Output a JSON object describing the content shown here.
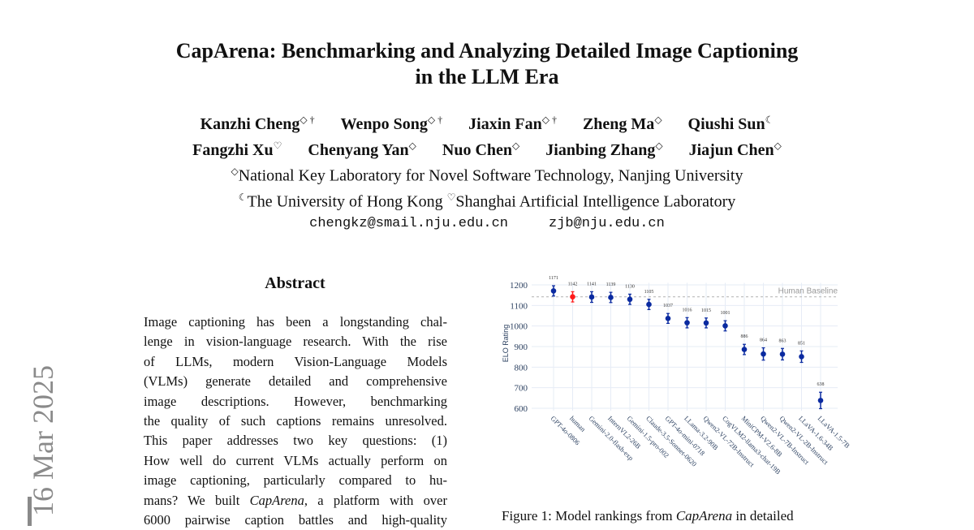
{
  "paper": {
    "title_lines": [
      "CapArena: Benchmarking and Analyzing Detailed Image Captioning",
      "in the LLM Era"
    ],
    "authors_line1": [
      {
        "name": "Kanzhi Cheng",
        "mark": "◇ †"
      },
      {
        "name": "Wenpo Song",
        "mark": "◇ †"
      },
      {
        "name": "Jiaxin Fan",
        "mark": "◇ †"
      },
      {
        "name": "Zheng Ma",
        "mark": "◇"
      },
      {
        "name": "Qiushi Sun",
        "mark": "☾"
      }
    ],
    "authors_line2": [
      {
        "name": "Fangzhi Xu",
        "mark": "♡"
      },
      {
        "name": "Chenyang Yan",
        "mark": "◇"
      },
      {
        "name": "Nuo Chen",
        "mark": "◇"
      },
      {
        "name": "Jianbing Zhang",
        "mark": "◇"
      },
      {
        "name": "Jiajun Chen",
        "mark": "◇"
      }
    ],
    "affiliation1": {
      "mark": "◇",
      "text": "National Key Laboratory for Novel Software Technology, Nanjing University"
    },
    "affiliation2": {
      "mark1": "☾",
      "text1": "The University of Hong Kong ",
      "mark2": "♡",
      "text2": "Shanghai Artificial Intelligence Laboratory"
    },
    "emails": [
      "chengkz@smail.nju.edu.cn",
      "zjb@nju.edu.cn"
    ],
    "arxiv_stamp": "16 Mar 2025",
    "abstract_heading": "Abstract",
    "abstract_lines": [
      "Image captioning has been a longstanding chal-",
      "lenge in vision-language research. With the rise",
      "of LLMs, modern Vision-Language Models",
      "(VLMs) generate detailed and comprehensive",
      "image descriptions. However, benchmarking",
      "the quality of such captions remains unresolved.",
      "This paper addresses two key questions: (1)",
      "How well do current VLMs actually perform on",
      "image captioning, particularly compared to hu-"
    ],
    "abstract_line10": {
      "pre": "mans? We built ",
      "em": "CapArena",
      "post": ", a platform with over"
    },
    "abstract_line11": "6000 pairwise caption battles and high-quality",
    "figure_caption": {
      "pre": "Figure 1:  Model rankings from ",
      "em": "CapArena",
      "post": " in detailed"
    }
  },
  "chart_data": {
    "type": "scatter",
    "title": "",
    "xlabel": "",
    "ylabel": "ELO Rating",
    "ylim": [
      600,
      1210
    ],
    "yticks": [
      600,
      700,
      800,
      900,
      1000,
      1100,
      1200
    ],
    "grid": true,
    "baseline": {
      "label": "Human Baseline",
      "value": 1142
    },
    "categories": [
      "GPT-4o-0806",
      "human",
      "Gemini-2.0-flash-exp",
      "InternVL2-26B",
      "Gemini-1.5-pro-002",
      "Claude-3.5-Sonnet-0620",
      "GPT-4o-mini-0718",
      "LLama-3.2-90B",
      "Qwen2-VL-72B-Instruct",
      "CogVLM2-llama3-chat-19B",
      "MiniCPM-V2.6-8B",
      "Qwen2-VL-7B-Instruct",
      "Qwen2-VL-2B-Instruct",
      "LLaVA-1.6-34B",
      "LLaVA-1.5-7B"
    ],
    "values": [
      1171,
      1142,
      1141,
      1139,
      1130,
      1105,
      1037,
      1016,
      1015,
      1001,
      886,
      864,
      863,
      851,
      638
    ],
    "error": [
      25,
      25,
      26,
      25,
      25,
      25,
      24,
      25,
      24,
      25,
      25,
      30,
      28,
      28,
      40
    ],
    "highlight": "human",
    "colors": {
      "model": "#0a2aa0",
      "human": "#ff1a1a",
      "grid": "#e6ecf6",
      "axis_text": "#2a3f5f",
      "baseline": "#bbbbbb"
    }
  }
}
